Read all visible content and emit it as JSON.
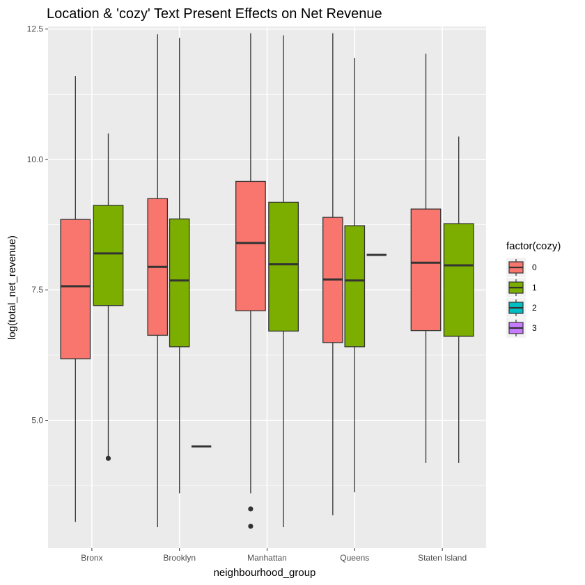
{
  "chart_data": {
    "type": "boxplot",
    "title": "Location & 'cozy' Text Present Effects on Net Revenue",
    "xlabel": "neighbourhood_group",
    "ylabel": "log(total_net_revenue)",
    "categories": [
      "Bronx",
      "Brooklyn",
      "Manhattan",
      "Queens",
      "Staten Island"
    ],
    "ylim": [
      2.55,
      12.55
    ],
    "yticks": [
      5.0,
      7.5,
      10.0,
      12.5
    ],
    "ytick_labels": [
      "5.0",
      "7.5",
      "10.0",
      "12.5"
    ],
    "grid": true,
    "legend": {
      "title": "factor(cozy)",
      "position": "right",
      "items": [
        {
          "label": "0",
          "color": "#F8766D"
        },
        {
          "label": "1",
          "color": "#7CAE00"
        },
        {
          "label": "2",
          "color": "#00BFC4"
        },
        {
          "label": "3",
          "color": "#C77CFF"
        }
      ]
    },
    "series": [
      {
        "name": "0",
        "color": "#F8766D",
        "boxes": [
          {
            "category": "Bronx",
            "dodge_index": 0,
            "dodge_n": 2,
            "whisker_low": 3.05,
            "q1": 6.18,
            "median": 7.57,
            "q3": 8.85,
            "whisker_high": 11.6,
            "outliers": []
          },
          {
            "category": "Brooklyn",
            "dodge_index": 0,
            "dodge_n": 3,
            "whisker_low": 2.95,
            "q1": 6.63,
            "median": 7.94,
            "q3": 9.25,
            "whisker_high": 12.4,
            "outliers": []
          },
          {
            "category": "Manhattan",
            "dodge_index": 0,
            "dodge_n": 2,
            "whisker_low": 3.6,
            "q1": 7.1,
            "median": 8.4,
            "q3": 9.58,
            "whisker_high": 12.42,
            "outliers": [
              3.3,
              2.97
            ]
          },
          {
            "category": "Queens",
            "dodge_index": 0,
            "dodge_n": 3,
            "whisker_low": 3.18,
            "q1": 6.49,
            "median": 7.7,
            "q3": 8.89,
            "whisker_high": 12.42,
            "outliers": []
          },
          {
            "category": "Staten Island",
            "dodge_index": 0,
            "dodge_n": 2,
            "whisker_low": 4.18,
            "q1": 6.72,
            "median": 8.02,
            "q3": 9.05,
            "whisker_high": 12.03,
            "outliers": []
          }
        ]
      },
      {
        "name": "1",
        "color": "#7CAE00",
        "boxes": [
          {
            "category": "Bronx",
            "dodge_index": 1,
            "dodge_n": 2,
            "whisker_low": 4.27,
            "q1": 7.2,
            "median": 8.2,
            "q3": 9.12,
            "whisker_high": 10.5,
            "outliers": [
              4.27
            ]
          },
          {
            "category": "Brooklyn",
            "dodge_index": 1,
            "dodge_n": 3,
            "whisker_low": 3.6,
            "q1": 6.41,
            "median": 7.68,
            "q3": 8.86,
            "whisker_high": 12.33,
            "outliers": []
          },
          {
            "category": "Manhattan",
            "dodge_index": 1,
            "dodge_n": 2,
            "whisker_low": 2.95,
            "q1": 6.71,
            "median": 7.99,
            "q3": 9.18,
            "whisker_high": 12.38,
            "outliers": []
          },
          {
            "category": "Queens",
            "dodge_index": 1,
            "dodge_n": 3,
            "whisker_low": 3.62,
            "q1": 6.41,
            "median": 7.68,
            "q3": 8.73,
            "whisker_high": 11.95,
            "outliers": []
          },
          {
            "category": "Staten Island",
            "dodge_index": 1,
            "dodge_n": 2,
            "whisker_low": 4.18,
            "q1": 6.61,
            "median": 7.97,
            "q3": 8.77,
            "whisker_high": 10.44,
            "outliers": []
          }
        ]
      },
      {
        "name": "2",
        "color": "#00BFC4",
        "boxes": [
          {
            "category": "Brooklyn",
            "dodge_index": 2,
            "dodge_n": 3,
            "whisker_low": 4.5,
            "q1": 4.5,
            "median": 4.5,
            "q3": 4.5,
            "whisker_high": 4.5,
            "outliers": []
          },
          {
            "category": "Queens",
            "dodge_index": 2,
            "dodge_n": 3,
            "whisker_low": 8.17,
            "q1": 8.17,
            "median": 8.17,
            "q3": 8.17,
            "whisker_high": 8.17,
            "outliers": []
          }
        ]
      }
    ]
  }
}
